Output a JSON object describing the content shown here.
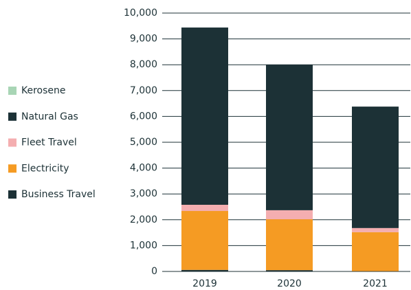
{
  "chart_data": {
    "type": "stacked_bar",
    "categories": [
      "2019",
      "2020",
      "2021"
    ],
    "series": [
      {
        "name": "Business Travel",
        "color": "#1c3136",
        "values": [
          60,
          50,
          10
        ]
      },
      {
        "name": "Electricity",
        "color": "#f59b23",
        "values": [
          2280,
          1970,
          1510
        ]
      },
      {
        "name": "Fleet Travel",
        "color": "#f4aeb0",
        "values": [
          240,
          350,
          160
        ]
      },
      {
        "name": "Natural Gas",
        "color": "#1c3136",
        "values": [
          6860,
          5630,
          4700
        ]
      },
      {
        "name": "Kerosene",
        "color": "#a8d5b5",
        "values": [
          0,
          0,
          0
        ]
      }
    ],
    "ylim": [
      0,
      10000
    ],
    "yticks": [
      0,
      {
        "value": 1000,
        "label": "1,000"
      },
      {
        "value": 2000,
        "label": "2,000"
      },
      {
        "value": 3000,
        "label": "3,000"
      },
      {
        "value": 4000,
        "label": "4,000"
      },
      {
        "value": 5000,
        "label": "5,000"
      },
      {
        "value": 6000,
        "label": "6,000"
      },
      {
        "value": 7000,
        "label": "7,000"
      },
      {
        "value": 8000,
        "label": "8,000"
      },
      {
        "value": 9000,
        "label": "9,000"
      },
      {
        "value": 10000,
        "label": "10,000"
      }
    ],
    "grid": true,
    "legend": "left"
  }
}
